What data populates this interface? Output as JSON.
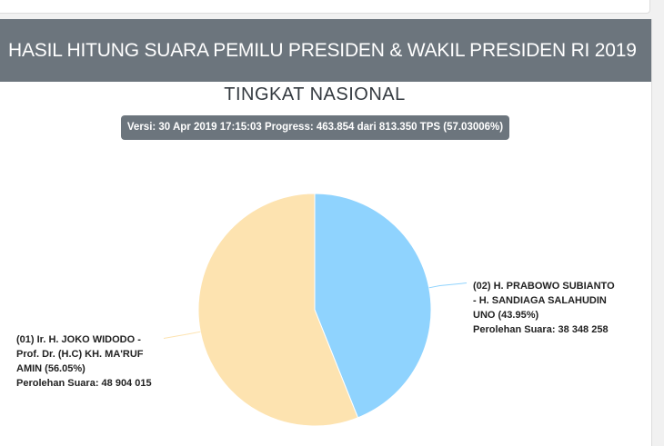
{
  "header": {
    "title": "HASIL HITUNG SUARA PEMILU PRESIDEN & WAKIL PRESIDEN RI 2019"
  },
  "subtitle": "TINGKAT NASIONAL",
  "version": "Versi: 30 Apr 2019 17:15:03 Progress: 463.854 dari 813.350 TPS (57.03006%)",
  "chart_data": {
    "type": "pie",
    "title": "TINGKAT NASIONAL",
    "slices": [
      {
        "name": "(02) H. PRABOWO SUBIANTO - H. SANDIAGA SALAHUDIN UNO",
        "percent": 43.95,
        "votes": 38348258,
        "color": "#8fd3fe",
        "label_lines": [
          "(02) H. PRABOWO SUBIANTO",
          "- H. SANDIAGA SALAHUDIN",
          "UNO (43.95%)",
          "Perolehan Suara: 38 348 258"
        ]
      },
      {
        "name": "(01) Ir. H. JOKO WIDODO - Prof. Dr. (H.C) KH. MA'RUF AMIN",
        "percent": 56.05,
        "votes": 48904015,
        "color": "#fde3b0",
        "label_lines": [
          "(01) Ir. H. JOKO WIDODO -",
          "Prof. Dr. (H.C) KH. MA'RUF",
          "AMIN (56.05%)",
          "Perolehan Suara: 48 904 015"
        ]
      }
    ]
  }
}
